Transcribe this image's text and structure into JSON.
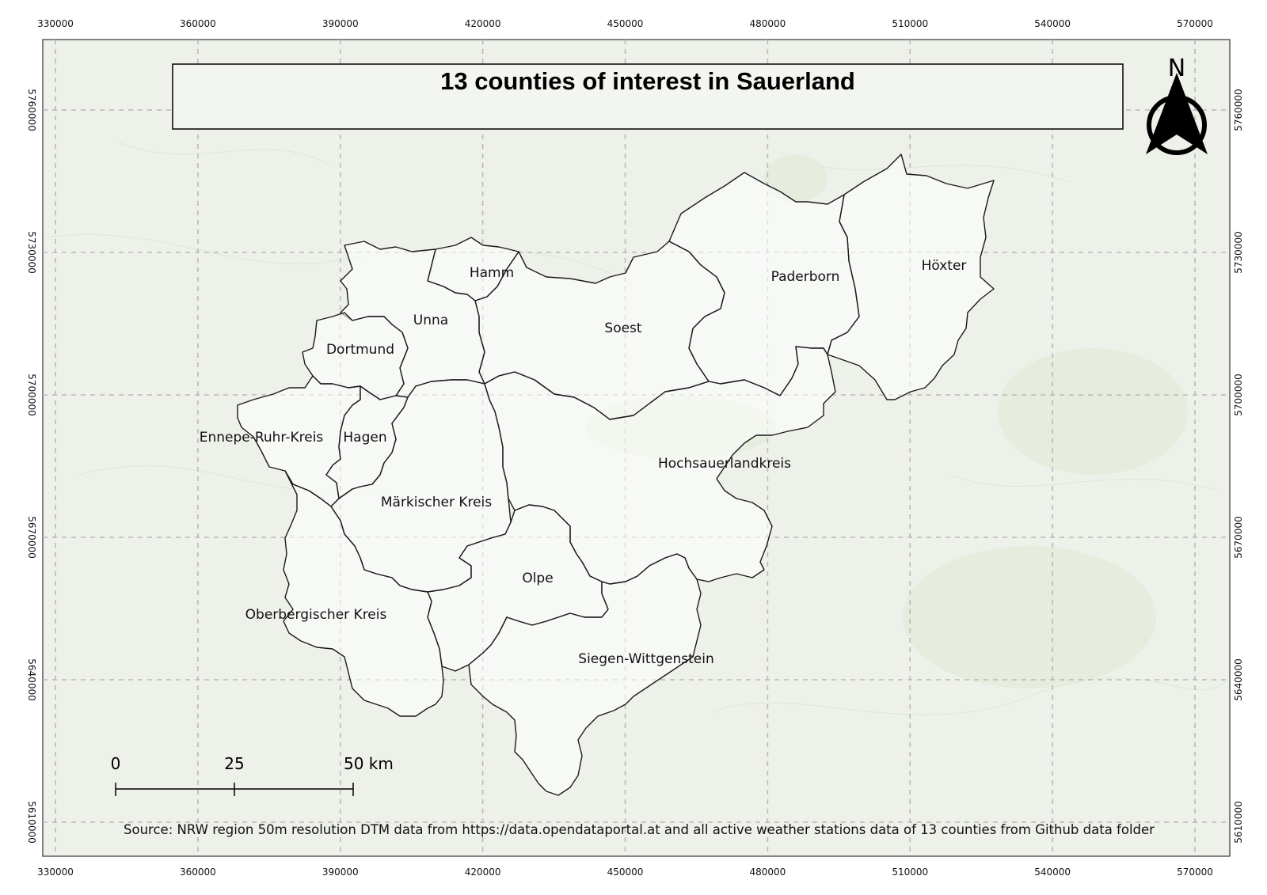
{
  "title": "13 counties of interest in Sauerland",
  "source": "Source: NRW region 50m resolution DTM data from https://data.opendataportal.at and all active weather stations data of 13 counties from Github data folder",
  "north_arrow": {
    "label": "N"
  },
  "scale_bar": {
    "labels": [
      "0",
      "25",
      "50 km"
    ]
  },
  "axis": {
    "x_ticks": [
      "330000",
      "360000",
      "390000",
      "420000",
      "450000",
      "480000",
      "510000",
      "540000",
      "570000"
    ],
    "y_ticks": [
      "5760000",
      "5730000",
      "5700000",
      "5670000",
      "5640000",
      "5610000"
    ]
  },
  "counties": [
    {
      "name": "Hamm"
    },
    {
      "name": "Unna"
    },
    {
      "name": "Dortmund"
    },
    {
      "name": "Soest"
    },
    {
      "name": "Paderborn"
    },
    {
      "name": "Höxter"
    },
    {
      "name": "Ennepe-Ruhr-Kreis"
    },
    {
      "name": "Hagen"
    },
    {
      "name": "Hochsauerlandkreis"
    },
    {
      "name": "Märkischer Kreis"
    },
    {
      "name": "Olpe"
    },
    {
      "name": "Oberbergischer Kreis"
    },
    {
      "name": "Siegen-Wittgenstein"
    }
  ],
  "colors": {
    "basemap": "#eef1ea",
    "boundary": "#1a1a1a",
    "grid": "#b8b8b8"
  }
}
